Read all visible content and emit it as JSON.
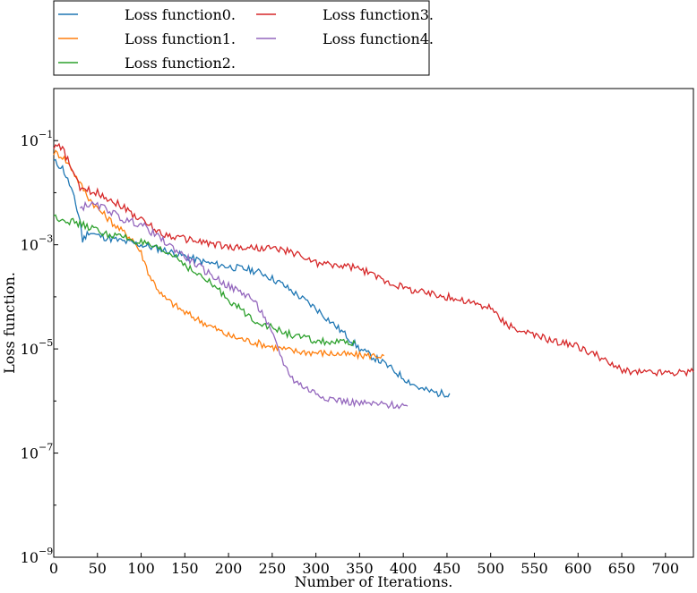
{
  "chart_data": {
    "type": "line",
    "xlabel": "Number of Iterations.",
    "ylabel": "Loss function.",
    "xlim": [
      0,
      732
    ],
    "ylim": [
      1e-09,
      1
    ],
    "yscale": "log",
    "grid": false,
    "legend_position": "above-plot",
    "x_ticks": [
      {
        "value": 0,
        "label": "0"
      },
      {
        "value": 50,
        "label": "50"
      },
      {
        "value": 100,
        "label": "100"
      },
      {
        "value": 150,
        "label": "150"
      },
      {
        "value": 200,
        "label": "200"
      },
      {
        "value": 250,
        "label": "250"
      },
      {
        "value": 300,
        "label": "300"
      },
      {
        "value": 350,
        "label": "350"
      },
      {
        "value": 400,
        "label": "400"
      },
      {
        "value": 450,
        "label": "450"
      },
      {
        "value": 500,
        "label": "500"
      },
      {
        "value": 550,
        "label": "550"
      },
      {
        "value": 600,
        "label": "600"
      },
      {
        "value": 650,
        "label": "650"
      },
      {
        "value": 700,
        "label": "700"
      }
    ],
    "y_ticks": [
      {
        "value": 0.1,
        "base": "10",
        "exp": "−1"
      },
      {
        "value": 0.001,
        "base": "10",
        "exp": "−3"
      },
      {
        "value": 1e-05,
        "base": "10",
        "exp": "−5"
      },
      {
        "value": 1e-07,
        "base": "10",
        "exp": "−7"
      },
      {
        "value": 1e-09,
        "base": "10",
        "exp": "−9"
      }
    ],
    "series": [
      {
        "name": "Loss function0.",
        "color": "#1f77b4",
        "points": [
          [
            0,
            0.04
          ],
          [
            10,
            0.03
          ],
          [
            20,
            0.012
          ],
          [
            25,
            0.006
          ],
          [
            30,
            0.003
          ],
          [
            33,
            0.0012
          ],
          [
            40,
            0.0018
          ],
          [
            50,
            0.0015
          ],
          [
            75,
            0.0012
          ],
          [
            100,
            0.001
          ],
          [
            125,
            0.0008
          ],
          [
            150,
            0.0006
          ],
          [
            175,
            0.00045
          ],
          [
            200,
            0.00038
          ],
          [
            225,
            0.00033
          ],
          [
            240,
            0.00028
          ],
          [
            260,
            0.00018
          ],
          [
            275,
            0.00012
          ],
          [
            300,
            6e-05
          ],
          [
            320,
            3e-05
          ],
          [
            335,
            1.8e-05
          ],
          [
            350,
            1e-05
          ],
          [
            380,
            5e-06
          ],
          [
            400,
            2.8e-06
          ],
          [
            420,
            1.7e-06
          ],
          [
            440,
            1.4e-06
          ],
          [
            453,
            1.4e-06
          ]
        ]
      },
      {
        "name": "Loss function1.",
        "color": "#ff7f0e",
        "points": [
          [
            0,
            0.06
          ],
          [
            10,
            0.05
          ],
          [
            20,
            0.03
          ],
          [
            30,
            0.015
          ],
          [
            40,
            0.008
          ],
          [
            50,
            0.005
          ],
          [
            75,
            0.002
          ],
          [
            90,
            0.0013
          ],
          [
            100,
            0.0007
          ],
          [
            110,
            0.00025
          ],
          [
            125,
            0.0001
          ],
          [
            150,
            5e-05
          ],
          [
            175,
            3e-05
          ],
          [
            200,
            1.8e-05
          ],
          [
            225,
            1.4e-05
          ],
          [
            250,
            1.1e-05
          ],
          [
            275,
            9e-06
          ],
          [
            300,
            8.5e-06
          ],
          [
            325,
            8e-06
          ],
          [
            350,
            7.5e-06
          ],
          [
            378,
            7.4e-06
          ]
        ]
      },
      {
        "name": "Loss function2.",
        "color": "#2ca02c",
        "points": [
          [
            0,
            0.0035
          ],
          [
            20,
            0.0028
          ],
          [
            40,
            0.0022
          ],
          [
            60,
            0.0016
          ],
          [
            80,
            0.0014
          ],
          [
            100,
            0.0011
          ],
          [
            120,
            0.0008
          ],
          [
            140,
            0.0006
          ],
          [
            160,
            0.0003
          ],
          [
            180,
            0.00018
          ],
          [
            200,
            9e-05
          ],
          [
            225,
            4e-05
          ],
          [
            250,
            2.5e-05
          ],
          [
            275,
            1.8e-05
          ],
          [
            300,
            1.4e-05
          ],
          [
            330,
            1.3e-05
          ],
          [
            345,
            1.3e-05
          ]
        ]
      },
      {
        "name": "Loss function3.",
        "color": "#d62728",
        "points": [
          [
            0,
            0.08
          ],
          [
            10,
            0.07
          ],
          [
            20,
            0.03
          ],
          [
            30,
            0.012
          ],
          [
            50,
            0.01
          ],
          [
            75,
            0.006
          ],
          [
            100,
            0.003
          ],
          [
            125,
            0.0016
          ],
          [
            150,
            0.0013
          ],
          [
            175,
            0.0011
          ],
          [
            200,
            0.0009
          ],
          [
            250,
            0.00085
          ],
          [
            275,
            0.0007
          ],
          [
            300,
            0.00045
          ],
          [
            325,
            0.0004
          ],
          [
            350,
            0.00035
          ],
          [
            375,
            0.00022
          ],
          [
            400,
            0.00015
          ],
          [
            425,
            0.00012
          ],
          [
            450,
            0.0001
          ],
          [
            475,
            8e-05
          ],
          [
            500,
            6e-05
          ],
          [
            510,
            4e-05
          ],
          [
            525,
            2.5e-05
          ],
          [
            550,
            1.8e-05
          ],
          [
            575,
            1.4e-05
          ],
          [
            600,
            1.1e-05
          ],
          [
            625,
            7e-06
          ],
          [
            645,
            4.2e-06
          ],
          [
            660,
            3.6e-06
          ],
          [
            700,
            3.5e-06
          ],
          [
            732,
            3.6e-06
          ]
        ]
      },
      {
        "name": "Loss function4.",
        "color": "#9467bd",
        "points": [
          [
            30,
            0.005
          ],
          [
            40,
            0.006
          ],
          [
            60,
            0.005
          ],
          [
            80,
            0.003
          ],
          [
            100,
            0.0025
          ],
          [
            125,
            0.0012
          ],
          [
            150,
            0.0006
          ],
          [
            175,
            0.0003
          ],
          [
            200,
            0.00016
          ],
          [
            225,
            0.0001
          ],
          [
            240,
            4.5e-05
          ],
          [
            255,
            1.2e-05
          ],
          [
            265,
            4.5e-06
          ],
          [
            275,
            2.5e-06
          ],
          [
            290,
            1.7e-06
          ],
          [
            310,
            1.2e-06
          ],
          [
            330,
            1e-06
          ],
          [
            350,
            9e-07
          ],
          [
            375,
            8.5e-07
          ],
          [
            405,
            8e-07
          ]
        ]
      }
    ]
  }
}
